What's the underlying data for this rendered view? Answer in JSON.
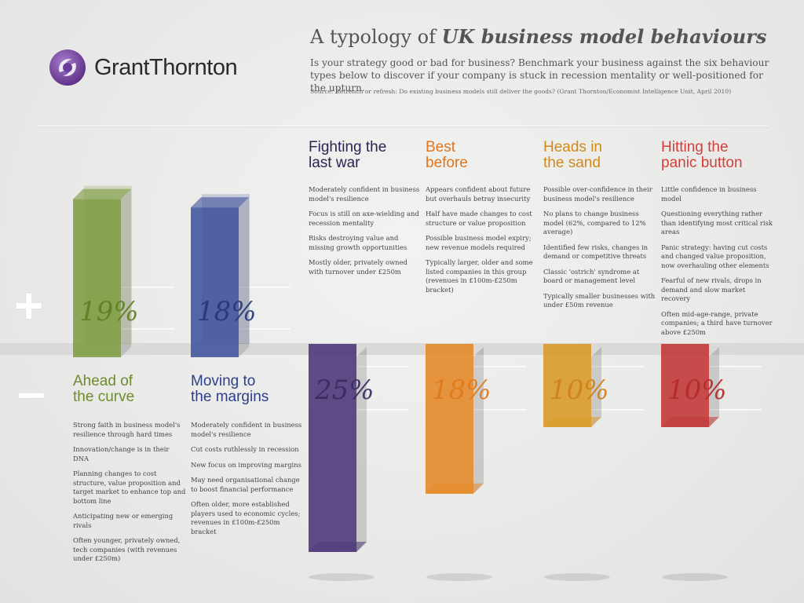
{
  "logo": {
    "text": "GrantThornton",
    "accent": "#6a3d9a"
  },
  "title": {
    "prefix": "A typology of ",
    "emphasis": "UK business model behaviours"
  },
  "intro": "Is your strategy good or bad for business? Benchmark your business against the six behaviour types below to discover if your company is stuck in recession mentality or well-positioned for the upturn.",
  "source": "Source: Retrench or refresh: Do existing business models still deliver the goods? (Grant Thornton/Economist Intelligence Unit, April 2010)",
  "signs": {
    "plus": "+",
    "minus": "–"
  },
  "chart_data": {
    "type": "bar",
    "categories": [
      "Ahead of the curve",
      "Moving to the margins",
      "Fighting the last war",
      "Best before",
      "Heads in the sand",
      "Hitting the panic button"
    ],
    "values": [
      19,
      18,
      25,
      18,
      10,
      10
    ],
    "direction": [
      "positive",
      "positive",
      "negative",
      "negative",
      "negative",
      "negative"
    ],
    "labels": [
      "19%",
      "18%",
      "25%",
      "18%",
      "10%",
      "10%"
    ],
    "colors": [
      "#7a9a3c",
      "#3a4f9a",
      "#4e3a7a",
      "#e58a2a",
      "#d99a2a",
      "#c23a3a"
    ],
    "label_colors": [
      "#5f7f22",
      "#26367a",
      "#3a2a62",
      "#e07a1e",
      "#d0801a",
      "#b52a2a"
    ]
  },
  "columns": [
    {
      "heading": [
        "Ahead of",
        "the curve"
      ],
      "color": "#6e8c2e",
      "items": [
        "Strong faith in business model's resilience through hard times",
        "Innovation/change is in their DNA",
        "Planning changes to cost structure, value proposition and target market to enhance top and bottom line",
        "Anticipating new or emerging rivals",
        "Often younger, privately owned, tech companies (with revenues under £250m)"
      ]
    },
    {
      "heading": [
        "Moving to",
        "the margins"
      ],
      "color": "#2e3f8a",
      "items": [
        "Moderately confident in business model's resilience",
        "Cut costs ruthlessly in recession",
        "New focus on improving margins",
        "May need organisational change to boost financial performance",
        "Often older, more established players used to economic cycles; revenues in £100m-£250m bracket"
      ]
    },
    {
      "heading": [
        "Fighting the",
        "last war"
      ],
      "color": "#2a2552",
      "items": [
        "Moderately confident in business model's resilience",
        "Focus is still on axe-wielding and recession mentality",
        "Risks destroying value and missing growth opportunities",
        "Mostly older, privately owned with turnover under £250m"
      ]
    },
    {
      "heading": [
        "Best",
        "before"
      ],
      "color": "#e07420",
      "items": [
        "Appears confident about future but overhauls betray insecurity",
        "Half have made changes to cost structure or value proposition",
        "Possible business model expiry; new revenue models required",
        "Typically larger, older and some listed companies in this group (revenues in £100m-£250m bracket)"
      ]
    },
    {
      "heading": [
        "Heads in",
        "the sand"
      ],
      "color": "#d08a1c",
      "items": [
        "Possible over-confidence in their business model's resilience",
        "No plans to change business model (62%, compared to 12% average)",
        "Identified few risks, changes in demand or competitive threats",
        "Classic 'ostrich' syndrome at board or management level",
        "Typically smaller businesses with under £50m revenue"
      ]
    },
    {
      "heading": [
        "Hitting the",
        "panic button"
      ],
      "color": "#d2403c",
      "items": [
        "Little confidence in business model",
        "Questioning everything rather than identifying most critical risk areas",
        "Panic strategy: having cut costs and changed value proposition, now overhauling other elements",
        "Fearful of new rivals, drops in demand and slow market recovery",
        "Often mid-age-range, private companies; a third have turnover above £250m"
      ]
    }
  ]
}
